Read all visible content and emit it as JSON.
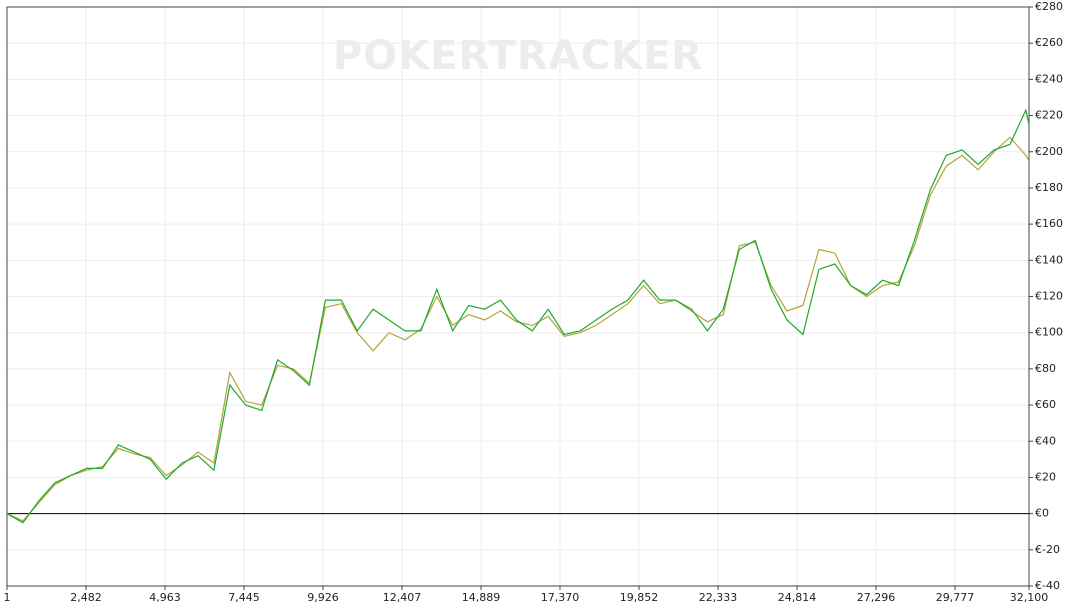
{
  "chart_data": {
    "type": "line",
    "watermark": "POKERTRACKER",
    "x": [
      1,
      500,
      1000,
      1500,
      2000,
      2500,
      3000,
      3500,
      4000,
      4500,
      5000,
      5500,
      6000,
      6500,
      7000,
      7500,
      8000,
      8500,
      9000,
      9500,
      10000,
      10500,
      11000,
      11500,
      12000,
      12500,
      13000,
      13500,
      14000,
      14500,
      15000,
      15500,
      16000,
      16500,
      17000,
      17500,
      18000,
      18500,
      19000,
      19500,
      20000,
      20500,
      21000,
      21500,
      22000,
      22500,
      23000,
      23500,
      24000,
      24500,
      25000,
      25500,
      26000,
      26500,
      27000,
      27500,
      28000,
      28500,
      29000,
      29500,
      30000,
      30500,
      31000,
      31500,
      32000,
      32100
    ],
    "series": [
      {
        "color": "#b5a33a",
        "values": [
          0,
          -4,
          6,
          16,
          21,
          24,
          26,
          36,
          33,
          31,
          21,
          27,
          34,
          28,
          78,
          62,
          60,
          82,
          80,
          72,
          114,
          116,
          100,
          90,
          100,
          96,
          102,
          120,
          104,
          110,
          107,
          112,
          106,
          104,
          109,
          98,
          100,
          104,
          110,
          116,
          126,
          116,
          118,
          112,
          106,
          110,
          148,
          150,
          126,
          112,
          115,
          146,
          144,
          126,
          120,
          126,
          128,
          148,
          176,
          192,
          198,
          190,
          200,
          208,
          198,
          195
        ]
      },
      {
        "color": "#1faa2a",
        "values": [
          0,
          -5,
          7,
          17,
          21,
          25,
          25,
          38,
          34,
          30,
          19,
          28,
          32,
          24,
          71,
          60,
          57,
          85,
          79,
          71,
          118,
          118,
          101,
          113,
          107,
          101,
          101,
          124,
          101,
          115,
          113,
          118,
          107,
          101,
          113,
          99,
          101,
          107,
          113,
          118,
          129,
          118,
          118,
          113,
          101,
          113,
          146,
          151,
          124,
          107,
          99,
          135,
          138,
          126,
          121,
          129,
          126,
          151,
          179,
          198,
          201,
          193,
          201,
          204,
          223,
          215
        ]
      }
    ],
    "xlim": [
      1,
      32100
    ],
    "xticks": [
      1,
      {
        "value": 2482,
        "label": "2,482"
      },
      {
        "value": 4963,
        "label": "4,963"
      },
      {
        "value": 7445,
        "label": "7,445"
      },
      {
        "value": 9926,
        "label": "9,926"
      },
      {
        "value": 12407,
        "label": "12,407"
      },
      {
        "value": 14889,
        "label": "14,889"
      },
      {
        "value": 17370,
        "label": "17,370"
      },
      {
        "value": 19852,
        "label": "19,852"
      },
      {
        "value": 22333,
        "label": "22,333"
      },
      {
        "value": 24814,
        "label": "24,814"
      },
      {
        "value": 27296,
        "label": "27,296"
      },
      {
        "value": 29777,
        "label": "29,777"
      },
      {
        "value": 32100,
        "label": "32,100"
      }
    ],
    "ylim": [
      -40,
      280
    ],
    "yticks": [
      {
        "value": -40,
        "label": "€-40"
      },
      {
        "value": -20,
        "label": "€-20"
      },
      {
        "value": 0,
        "label": "€0"
      },
      {
        "value": 20,
        "label": "€20"
      },
      {
        "value": 40,
        "label": "€40"
      },
      {
        "value": 60,
        "label": "€60"
      },
      {
        "value": 80,
        "label": "€80"
      },
      {
        "value": 100,
        "label": "€100"
      },
      {
        "value": 120,
        "label": "€120"
      },
      {
        "value": 140,
        "label": "€140"
      },
      {
        "value": 160,
        "label": "€160"
      },
      {
        "value": 180,
        "label": "€180"
      },
      {
        "value": 200,
        "label": "€200"
      },
      {
        "value": 220,
        "label": "€220"
      },
      {
        "value": 240,
        "label": "€240"
      },
      {
        "value": 260,
        "label": "€260"
      },
      {
        "value": 280,
        "label": "€280"
      }
    ],
    "grid": true
  }
}
